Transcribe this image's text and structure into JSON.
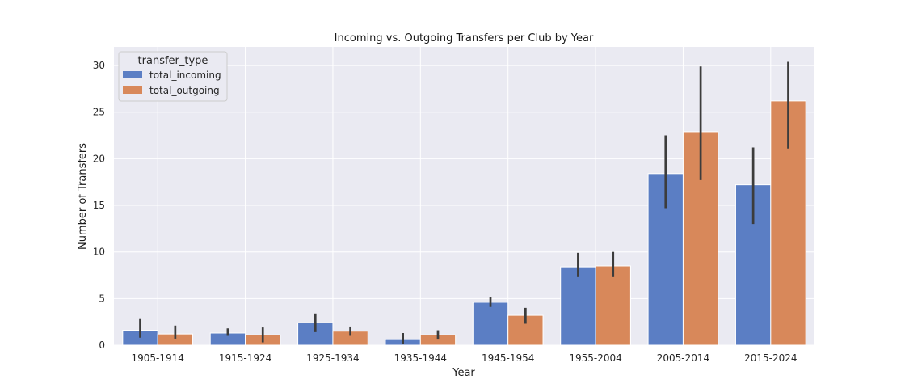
{
  "chart_data": {
    "type": "bar",
    "title": "Incoming vs. Outgoing Transfers per Club by Year",
    "xlabel": "Year",
    "ylabel": "Number of Transfers",
    "categories": [
      "1905-1914",
      "1915-1924",
      "1925-1934",
      "1935-1944",
      "1945-1954",
      "1955-2004",
      "2005-2014",
      "2015-2024"
    ],
    "ylim": [
      0,
      32
    ],
    "yticks": [
      0,
      5,
      10,
      15,
      20,
      25,
      30
    ],
    "grid": true,
    "legend": {
      "title": "transfer_type",
      "placement": "top-left"
    },
    "series": [
      {
        "name": "total_incoming",
        "color": "#5b7ec4",
        "values": [
          1.6,
          1.3,
          2.4,
          0.6,
          4.6,
          8.4,
          18.4,
          17.2
        ],
        "ci": [
          [
            0.8,
            2.8
          ],
          [
            1.0,
            1.8
          ],
          [
            1.4,
            3.4
          ],
          [
            0.1,
            1.3
          ],
          [
            4.1,
            5.2
          ],
          [
            7.3,
            9.9
          ],
          [
            14.7,
            22.5
          ],
          [
            13.0,
            21.2
          ]
        ]
      },
      {
        "name": "total_outgoing",
        "color": "#d8885a",
        "values": [
          1.2,
          1.1,
          1.5,
          1.1,
          3.2,
          8.5,
          22.9,
          26.2
        ],
        "ci": [
          [
            0.7,
            2.1
          ],
          [
            0.3,
            1.9
          ],
          [
            1.0,
            2.0
          ],
          [
            0.6,
            1.6
          ],
          [
            2.3,
            4.0
          ],
          [
            7.3,
            10.0
          ],
          [
            17.7,
            29.9
          ],
          [
            21.1,
            30.4
          ]
        ]
      }
    ]
  }
}
